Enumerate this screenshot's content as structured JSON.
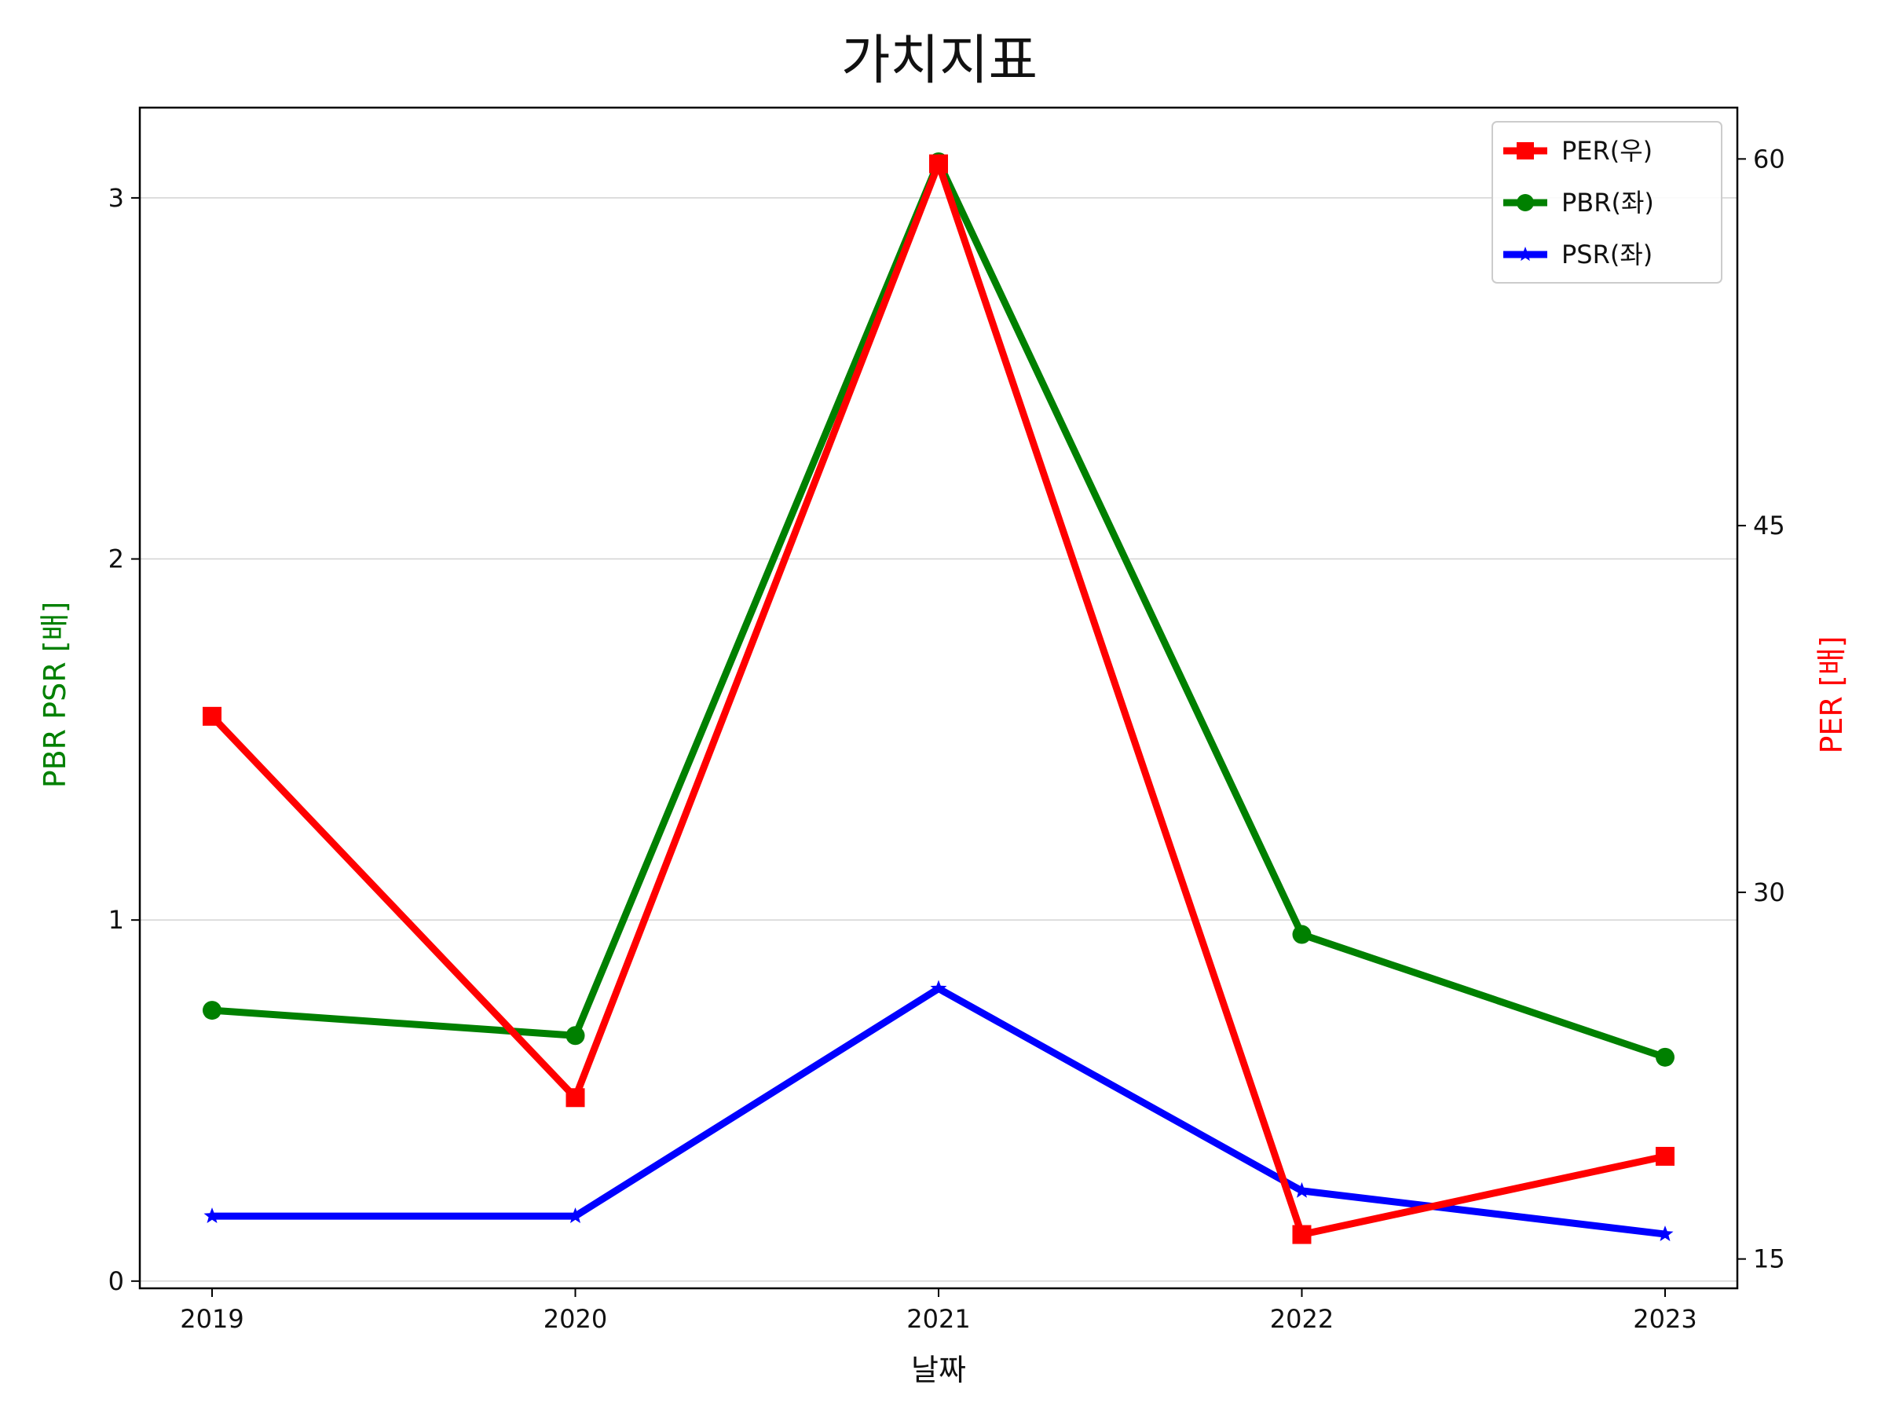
{
  "title": "가치지표",
  "chart_data": {
    "type": "line",
    "title": "가치지표",
    "xlabel": "날짜",
    "ylabel_left": "PBR PSR [배]",
    "ylabel_right": "PER [배]",
    "ylabel_left_color": "#008000",
    "ylabel_right_color": "#ff0000",
    "categories": [
      "2019",
      "2020",
      "2021",
      "2022",
      "2023"
    ],
    "y_left": {
      "ticks": [
        "0",
        "1",
        "2",
        "3"
      ],
      "range": [
        -0.02,
        3.25
      ]
    },
    "y_right": {
      "ticks": [
        "15",
        "30",
        "45",
        "60"
      ],
      "range": [
        13.8,
        62.1
      ]
    },
    "grid": "horizontal (left axis)",
    "legend_position": "upper right",
    "series": [
      {
        "name": "PER(우)",
        "axis": "right",
        "color": "#ff0000",
        "marker": "square",
        "values": [
          37.2,
          21.6,
          59.8,
          16.0,
          19.2
        ]
      },
      {
        "name": "PBR(좌)",
        "axis": "left",
        "color": "#008000",
        "marker": "circle",
        "values": [
          0.75,
          0.68,
          3.1,
          0.96,
          0.62
        ]
      },
      {
        "name": "PSR(좌)",
        "axis": "left",
        "color": "#0000ff",
        "marker": "star",
        "values": [
          0.18,
          0.18,
          0.81,
          0.25,
          0.13
        ]
      }
    ]
  }
}
